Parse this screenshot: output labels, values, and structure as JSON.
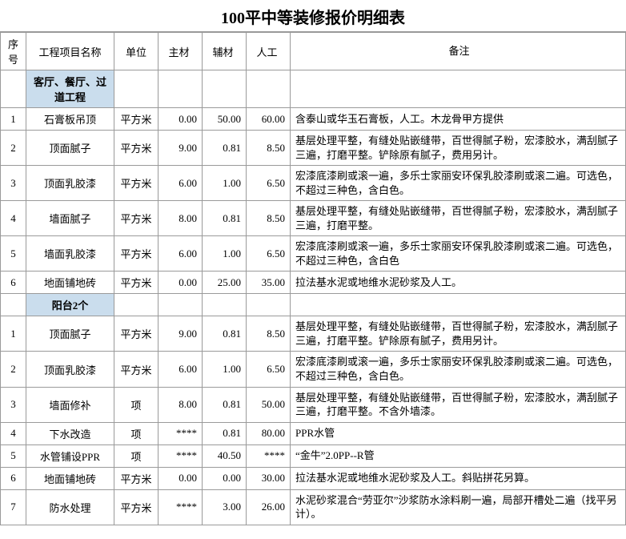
{
  "title": "100平中等装修报价明细表",
  "title_fontsize": 20,
  "header_fontsize": 13,
  "body_fontsize": 13,
  "section_bg": "#cadded",
  "border_color": "#9a9a9a",
  "columns": {
    "seq": "序号",
    "name": "工程项目名称",
    "unit": "单位",
    "mat1": "主材",
    "mat2": "辅材",
    "labor": "人工",
    "note": "备注"
  },
  "sections": [
    {
      "title": "客厅、餐厅、过道工程",
      "rows": [
        {
          "seq": "1",
          "name": "石膏板吊顶",
          "unit": "平方米",
          "mat1": "0.00",
          "mat2": "50.00",
          "labor": "60.00",
          "note": "含泰山或华玉石膏板，人工。木龙骨甲方提供"
        },
        {
          "seq": "2",
          "name": "顶面腻子",
          "unit": "平方米",
          "mat1": "9.00",
          "mat2": "0.81",
          "labor": "8.50",
          "note": "基层处理平整，有缝处贴嵌缝带，百世得腻子粉，宏漆胶水，满刮腻子三遍，打磨平整。铲除原有腻子，费用另计。"
        },
        {
          "seq": "3",
          "name": "顶面乳胶漆",
          "unit": "平方米",
          "mat1": "6.00",
          "mat2": "1.00",
          "labor": "6.50",
          "note": "宏漆底漆刷或滚一遍，多乐士家丽安环保乳胶漆刷或滚二遍。可选色，不超过三种色，含白色。"
        },
        {
          "seq": "4",
          "name": "墙面腻子",
          "unit": "平方米",
          "mat1": "8.00",
          "mat2": "0.81",
          "labor": "8.50",
          "note": "基层处理平整，有缝处贴嵌缝带，百世得腻子粉，宏漆胶水，满刮腻子三遍，打磨平整。"
        },
        {
          "seq": "5",
          "name": "墙面乳胶漆",
          "unit": "平方米",
          "mat1": "6.00",
          "mat2": "1.00",
          "labor": "6.50",
          "note": "宏漆底漆刷或滚一遍，多乐士家丽安环保乳胶漆刷或滚二遍。可选色，不超过三种色，含白色"
        },
        {
          "seq": "6",
          "name": "地面铺地砖",
          "unit": "平方米",
          "mat1": "0.00",
          "mat2": "25.00",
          "labor": "35.00",
          "note": "拉法基水泥或地维水泥砂浆及人工。"
        }
      ]
    },
    {
      "title": "阳台2个",
      "rows": [
        {
          "seq": "1",
          "name": "顶面腻子",
          "unit": "平方米",
          "mat1": "9.00",
          "mat2": "0.81",
          "labor": "8.50",
          "note": "基层处理平整，有缝处贴嵌缝带，百世得腻子粉，宏漆胶水，满刮腻子三遍，打磨平整。铲除原有腻子，费用另计。"
        },
        {
          "seq": "2",
          "name": "顶面乳胶漆",
          "unit": "平方米",
          "mat1": "6.00",
          "mat2": "1.00",
          "labor": "6.50",
          "note": "宏漆底漆刷或滚一遍，多乐士家丽安环保乳胶漆刷或滚二遍。可选色，不超过三种色，含白色。"
        },
        {
          "seq": "3",
          "name": "墙面修补",
          "unit": "项",
          "mat1": "8.00",
          "mat2": "0.81",
          "labor": "50.00",
          "note": "基层处理平整，有缝处贴嵌缝带，百世得腻子粉，宏漆胶水，满刮腻子三遍，打磨平整。不含外墙漆。"
        },
        {
          "seq": "4",
          "name": "下水改造",
          "unit": "项",
          "mat1": "****",
          "mat2": "0.81",
          "labor": "80.00",
          "note": "PPR水管"
        },
        {
          "seq": "5",
          "name": "水管铺设PPR",
          "unit": "项",
          "mat1": "****",
          "mat2": "40.50",
          "labor": "****",
          "note": "“金牛”2.0PP--R管"
        },
        {
          "seq": "6",
          "name": "地面铺地砖",
          "unit": "平方米",
          "mat1": "0.00",
          "mat2": "0.00",
          "labor": "30.00",
          "note": "拉法基水泥或地维水泥砂浆及人工。斜贴拼花另算。"
        },
        {
          "seq": "7",
          "name": "防水处理",
          "unit": "平方米",
          "mat1": "****",
          "mat2": "3.00",
          "labor": "26.00",
          "note": "水泥砂浆混合“劳亚尔”沙浆防水涂料刷一遍，局部开槽处二遍（找平另计）。"
        }
      ]
    }
  ]
}
